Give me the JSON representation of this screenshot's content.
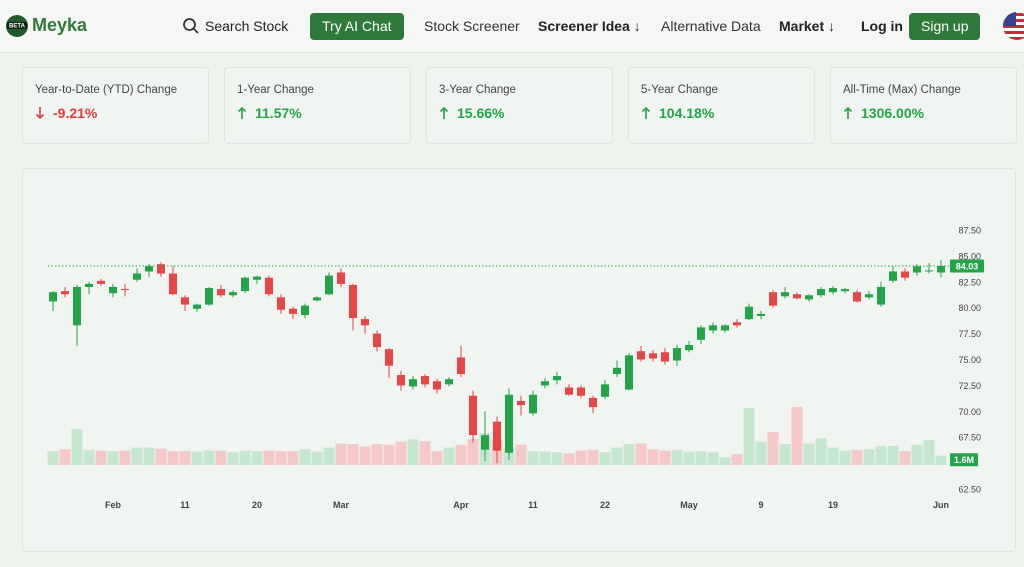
{
  "nav": {
    "brand": "Meyka",
    "badge": "BETA",
    "links": [
      "Search Stock",
      "Try AI Chat",
      "Stock Screener",
      "Screener Idea ↓",
      "Alternative Data",
      "Market ↓",
      "Log in",
      "Sign up"
    ]
  },
  "cards": [
    {
      "label": "Year-to-Date (YTD) Change",
      "value": "-9.21%",
      "direction": "down"
    },
    {
      "label": "1-Year Change",
      "value": "11.57%",
      "direction": "up"
    },
    {
      "label": "3-Year Change",
      "value": "15.66%",
      "direction": "up"
    },
    {
      "label": "5-Year Change",
      "value": "104.18%",
      "direction": "up"
    },
    {
      "label": "All-Time (Max) Change",
      "value": "1306.00%",
      "direction": "up"
    }
  ],
  "chart_data": {
    "type": "candlestick",
    "categories": [
      null,
      null,
      null,
      null,
      null,
      "Feb",
      null,
      null,
      null,
      null,
      null,
      "11",
      null,
      null,
      null,
      null,
      null,
      "20",
      null,
      null,
      null,
      null,
      null,
      null,
      "Mar",
      null,
      null,
      null,
      null,
      null,
      null,
      null,
      null,
      null,
      "Apr",
      null,
      null,
      null,
      null,
      null,
      "11",
      null,
      null,
      null,
      null,
      null,
      "22",
      null,
      null,
      null,
      null,
      null,
      null,
      "May",
      null,
      null,
      null,
      null,
      null,
      "9",
      null,
      null,
      null,
      null,
      null,
      "19",
      null,
      null,
      null,
      null,
      null,
      null,
      null,
      null,
      "Jun"
    ],
    "open": [
      80.6,
      81.6,
      78.3,
      82.0,
      82.6,
      81.4,
      81.8,
      82.7,
      83.5,
      84.2,
      83.3,
      81.0,
      79.9,
      80.3,
      81.8,
      81.2,
      81.6,
      82.7,
      82.9,
      81.0,
      79.9,
      79.3,
      80.7,
      81.3,
      83.4,
      82.2,
      78.9,
      77.5,
      76.0,
      73.5,
      72.4,
      73.4,
      72.9,
      72.6,
      75.2,
      71.5,
      66.3,
      69.0,
      66.0,
      71.0,
      69.8,
      72.5,
      73.0,
      72.3,
      72.3,
      71.3,
      71.4,
      73.6,
      72.1,
      75.8,
      75.6,
      75.7,
      74.9,
      75.9,
      76.9,
      77.8,
      77.8,
      78.6,
      78.9,
      79.2,
      81.5,
      81.1,
      81.3,
      80.8,
      81.2,
      81.5,
      81.6,
      81.5,
      81.0,
      80.3,
      82.6,
      83.5,
      83.4,
      83.5,
      83.4
    ],
    "high": [
      81.6,
      82.0,
      82.2,
      82.5,
      82.8,
      82.3,
      82.3,
      83.8,
      84.2,
      84.4,
      84.0,
      81.2,
      80.4,
      82.0,
      82.2,
      81.7,
      83.0,
      83.1,
      83.1,
      81.3,
      80.1,
      80.4,
      81.1,
      83.4,
      83.8,
      82.3,
      79.2,
      77.8,
      76.1,
      73.9,
      73.4,
      73.6,
      73.1,
      73.3,
      76.3,
      72.0,
      70.0,
      69.5,
      72.2,
      71.5,
      72.0,
      73.2,
      73.8,
      72.6,
      72.5,
      71.5,
      73.0,
      74.9,
      75.6,
      76.3,
      75.9,
      76.1,
      76.4,
      76.8,
      78.3,
      78.6,
      78.4,
      78.9,
      80.4,
      79.7,
      81.7,
      82.0,
      81.5,
      81.3,
      82.0,
      82.1,
      81.9,
      81.7,
      81.6,
      82.5,
      84.0,
      83.8,
      84.2,
      84.3,
      84.6
    ],
    "low": [
      79.7,
      81.0,
      76.3,
      81.3,
      82.1,
      81.0,
      81.1,
      82.5,
      83.0,
      83.0,
      81.2,
      79.7,
      79.6,
      80.2,
      81.0,
      81.0,
      81.4,
      82.3,
      81.1,
      79.4,
      78.9,
      79.0,
      80.6,
      81.2,
      82.0,
      77.8,
      77.5,
      75.8,
      73.2,
      72.0,
      72.1,
      72.3,
      71.7,
      72.4,
      73.3,
      67.0,
      65.2,
      65.0,
      65.3,
      69.6,
      69.6,
      72.2,
      72.6,
      71.5,
      71.3,
      69.8,
      71.2,
      73.3,
      72.0,
      74.8,
      74.8,
      74.5,
      74.4,
      75.7,
      76.5,
      77.5,
      77.6,
      78.1,
      78.8,
      78.9,
      80.0,
      80.9,
      80.8,
      80.6,
      81.0,
      81.3,
      81.4,
      80.5,
      80.8,
      80.1,
      82.4,
      82.6,
      83.1,
      83.3,
      82.9
    ],
    "close": [
      81.5,
      81.3,
      82.0,
      82.3,
      82.3,
      82.0,
      81.7,
      83.3,
      84.0,
      83.3,
      81.3,
      80.3,
      80.3,
      81.9,
      81.2,
      81.5,
      82.9,
      83.0,
      81.3,
      79.8,
      79.4,
      80.2,
      81.0,
      83.1,
      82.3,
      79.0,
      78.3,
      76.2,
      74.4,
      72.5,
      73.1,
      72.6,
      72.1,
      73.1,
      73.6,
      67.7,
      67.7,
      66.2,
      71.6,
      70.6,
      71.6,
      72.9,
      73.4,
      71.6,
      71.5,
      70.4,
      72.6,
      74.2,
      75.4,
      75.0,
      75.1,
      74.8,
      76.1,
      76.4,
      78.1,
      78.3,
      78.3,
      78.3,
      80.1,
      79.4,
      80.2,
      81.5,
      80.9,
      81.2,
      81.8,
      81.9,
      81.8,
      80.6,
      81.3,
      82.0,
      83.5,
      82.9,
      84.0,
      83.6,
      84.03
    ],
    "volume": [
      2.4,
      2.7,
      6.2,
      2.6,
      2.5,
      2.4,
      2.5,
      3.0,
      3.0,
      2.8,
      2.4,
      2.4,
      2.3,
      2.5,
      2.5,
      2.2,
      2.5,
      2.4,
      2.5,
      2.4,
      2.4,
      2.7,
      2.3,
      3.0,
      3.7,
      3.6,
      3.2,
      3.6,
      3.5,
      4.0,
      4.4,
      4.1,
      2.4,
      3.0,
      3.5,
      4.5,
      5.5,
      4.3,
      3.0,
      3.5,
      2.4,
      2.3,
      2.2,
      2.0,
      2.5,
      2.6,
      2.2,
      3.0,
      3.6,
      3.7,
      2.7,
      2.5,
      2.6,
      2.3,
      2.4,
      2.2,
      1.3,
      1.9,
      9.8,
      4.0,
      5.7,
      3.6,
      10.0,
      3.7,
      4.6,
      3.0,
      2.5,
      2.6,
      2.7,
      3.3,
      3.3,
      2.4,
      3.5,
      4.3,
      1.6
    ],
    "volume_label": "1.6M",
    "volume_lim": [
      0,
      10.5
    ],
    "ylim": [
      61.34,
      91.75
    ],
    "yticks": [
      {
        "value": 62.5,
        "label": "62.50"
      },
      {
        "value": 67.5,
        "label": "67.50"
      },
      {
        "value": 70,
        "label": "70.00"
      },
      {
        "value": 72.5,
        "label": "72.50"
      },
      {
        "value": 75,
        "label": "75.00"
      },
      {
        "value": 77.5,
        "label": "77.50"
      },
      {
        "value": 80,
        "label": "80.00"
      },
      {
        "value": 82.5,
        "label": "82.50"
      },
      {
        "value": 85,
        "label": "85.00"
      },
      {
        "value": 87.5,
        "label": "87.50"
      }
    ],
    "up_color": "#22a447",
    "down_color": "#e84545",
    "volume_up_color": "#c6e7cf",
    "volume_down_color": "#f6c9c9"
  }
}
